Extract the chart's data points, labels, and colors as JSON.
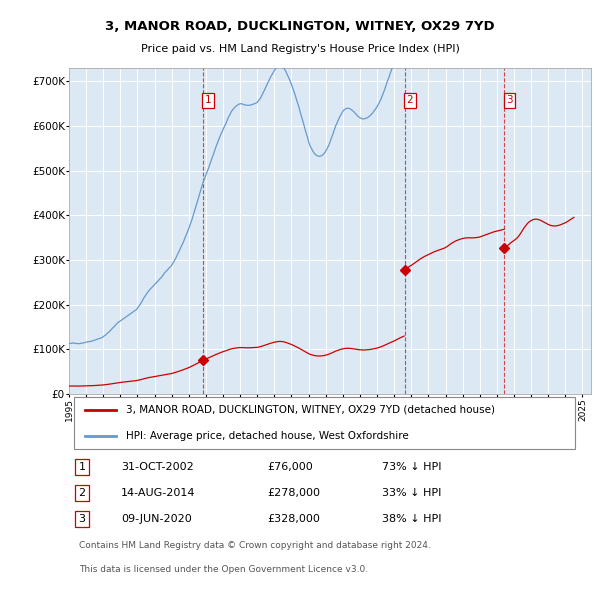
{
  "title": "3, MANOR ROAD, DUCKLINGTON, WITNEY, OX29 7YD",
  "subtitle": "Price paid vs. HM Land Registry's House Price Index (HPI)",
  "ylim": [
    0,
    730000
  ],
  "yticks": [
    0,
    100000,
    200000,
    300000,
    400000,
    500000,
    600000,
    700000
  ],
  "ytick_labels": [
    "£0",
    "£100K",
    "£200K",
    "£300K",
    "£400K",
    "£500K",
    "£600K",
    "£700K"
  ],
  "xlim_start": 1995.0,
  "xlim_end": 2025.5,
  "plot_bg_color": "#dce9f5",
  "fig_bg_color": "#ffffff",
  "red_line_color": "#cc0000",
  "blue_line_color": "#6699cc",
  "transactions": [
    {
      "num": 1,
      "year": 2002.83,
      "price": 76000,
      "label": "1"
    },
    {
      "num": 2,
      "year": 2014.62,
      "price": 278000,
      "label": "2"
    },
    {
      "num": 3,
      "year": 2020.44,
      "price": 328000,
      "label": "3"
    }
  ],
  "legend_label_red": "3, MANOR ROAD, DUCKLINGTON, WITNEY, OX29 7YD (detached house)",
  "legend_label_blue": "HPI: Average price, detached house, West Oxfordshire",
  "table_rows": [
    {
      "num": "1",
      "date": "31-OCT-2002",
      "price": "£76,000",
      "hpi": "73% ↓ HPI"
    },
    {
      "num": "2",
      "date": "14-AUG-2014",
      "price": "£278,000",
      "hpi": "33% ↓ HPI"
    },
    {
      "num": "3",
      "date": "09-JUN-2020",
      "price": "£328,000",
      "hpi": "38% ↓ HPI"
    }
  ],
  "footnote1": "Contains HM Land Registry data © Crown copyright and database right 2024.",
  "footnote2": "This data is licensed under the Open Government Licence v3.0.",
  "hpi_years": [
    1995.0,
    1995.08,
    1995.17,
    1995.25,
    1995.33,
    1995.42,
    1995.5,
    1995.58,
    1995.67,
    1995.75,
    1995.83,
    1995.92,
    1996.0,
    1996.08,
    1996.17,
    1996.25,
    1996.33,
    1996.42,
    1996.5,
    1996.58,
    1996.67,
    1996.75,
    1996.83,
    1996.92,
    1997.0,
    1997.08,
    1997.17,
    1997.25,
    1997.33,
    1997.42,
    1997.5,
    1997.58,
    1997.67,
    1997.75,
    1997.83,
    1997.92,
    1998.0,
    1998.08,
    1998.17,
    1998.25,
    1998.33,
    1998.42,
    1998.5,
    1998.58,
    1998.67,
    1998.75,
    1998.83,
    1998.92,
    1999.0,
    1999.08,
    1999.17,
    1999.25,
    1999.33,
    1999.42,
    1999.5,
    1999.58,
    1999.67,
    1999.75,
    1999.83,
    1999.92,
    2000.0,
    2000.08,
    2000.17,
    2000.25,
    2000.33,
    2000.42,
    2000.5,
    2000.58,
    2000.67,
    2000.75,
    2000.83,
    2000.92,
    2001.0,
    2001.08,
    2001.17,
    2001.25,
    2001.33,
    2001.42,
    2001.5,
    2001.58,
    2001.67,
    2001.75,
    2001.83,
    2001.92,
    2002.0,
    2002.08,
    2002.17,
    2002.25,
    2002.33,
    2002.42,
    2002.5,
    2002.58,
    2002.67,
    2002.75,
    2002.83,
    2002.92,
    2003.0,
    2003.08,
    2003.17,
    2003.25,
    2003.33,
    2003.42,
    2003.5,
    2003.58,
    2003.67,
    2003.75,
    2003.83,
    2003.92,
    2004.0,
    2004.08,
    2004.17,
    2004.25,
    2004.33,
    2004.42,
    2004.5,
    2004.58,
    2004.67,
    2004.75,
    2004.83,
    2004.92,
    2005.0,
    2005.08,
    2005.17,
    2005.25,
    2005.33,
    2005.42,
    2005.5,
    2005.58,
    2005.67,
    2005.75,
    2005.83,
    2005.92,
    2006.0,
    2006.08,
    2006.17,
    2006.25,
    2006.33,
    2006.42,
    2006.5,
    2006.58,
    2006.67,
    2006.75,
    2006.83,
    2006.92,
    2007.0,
    2007.08,
    2007.17,
    2007.25,
    2007.33,
    2007.42,
    2007.5,
    2007.58,
    2007.67,
    2007.75,
    2007.83,
    2007.92,
    2008.0,
    2008.08,
    2008.17,
    2008.25,
    2008.33,
    2008.42,
    2008.5,
    2008.58,
    2008.67,
    2008.75,
    2008.83,
    2008.92,
    2009.0,
    2009.08,
    2009.17,
    2009.25,
    2009.33,
    2009.42,
    2009.5,
    2009.58,
    2009.67,
    2009.75,
    2009.83,
    2009.92,
    2010.0,
    2010.08,
    2010.17,
    2010.25,
    2010.33,
    2010.42,
    2010.5,
    2010.58,
    2010.67,
    2010.75,
    2010.83,
    2010.92,
    2011.0,
    2011.08,
    2011.17,
    2011.25,
    2011.33,
    2011.42,
    2011.5,
    2011.58,
    2011.67,
    2011.75,
    2011.83,
    2011.92,
    2012.0,
    2012.08,
    2012.17,
    2012.25,
    2012.33,
    2012.42,
    2012.5,
    2012.58,
    2012.67,
    2012.75,
    2012.83,
    2012.92,
    2013.0,
    2013.08,
    2013.17,
    2013.25,
    2013.33,
    2013.42,
    2013.5,
    2013.58,
    2013.67,
    2013.75,
    2013.83,
    2013.92,
    2014.0,
    2014.08,
    2014.17,
    2014.25,
    2014.33,
    2014.42,
    2014.5,
    2014.58,
    2014.67,
    2014.75,
    2014.83,
    2014.92,
    2015.0,
    2015.08,
    2015.17,
    2015.25,
    2015.33,
    2015.42,
    2015.5,
    2015.58,
    2015.67,
    2015.75,
    2015.83,
    2015.92,
    2016.0,
    2016.08,
    2016.17,
    2016.25,
    2016.33,
    2016.42,
    2016.5,
    2016.58,
    2016.67,
    2016.75,
    2016.83,
    2016.92,
    2017.0,
    2017.08,
    2017.17,
    2017.25,
    2017.33,
    2017.42,
    2017.5,
    2017.58,
    2017.67,
    2017.75,
    2017.83,
    2017.92,
    2018.0,
    2018.08,
    2018.17,
    2018.25,
    2018.33,
    2018.42,
    2018.5,
    2018.58,
    2018.67,
    2018.75,
    2018.83,
    2018.92,
    2019.0,
    2019.08,
    2019.17,
    2019.25,
    2019.33,
    2019.42,
    2019.5,
    2019.58,
    2019.67,
    2019.75,
    2019.83,
    2019.92,
    2020.0,
    2020.08,
    2020.17,
    2020.25,
    2020.33,
    2020.42,
    2020.5,
    2020.58,
    2020.67,
    2020.75,
    2020.83,
    2020.92,
    2021.0,
    2021.08,
    2021.17,
    2021.25,
    2021.33,
    2021.42,
    2021.5,
    2021.58,
    2021.67,
    2021.75,
    2021.83,
    2021.92,
    2022.0,
    2022.08,
    2022.17,
    2022.25,
    2022.33,
    2022.42,
    2022.5,
    2022.58,
    2022.67,
    2022.75,
    2022.83,
    2022.92,
    2023.0,
    2023.08,
    2023.17,
    2023.25,
    2023.33,
    2023.42,
    2023.5,
    2023.58,
    2023.67,
    2023.75,
    2023.83,
    2023.92,
    2024.0,
    2024.08,
    2024.17,
    2024.25,
    2024.33,
    2024.42,
    2024.5
  ],
  "hpi_index": [
    100,
    100.5,
    101,
    101.5,
    101,
    100.5,
    100,
    100,
    100.5,
    101,
    101.5,
    102,
    103,
    103.5,
    104,
    104.5,
    105,
    106,
    107,
    108,
    109,
    110,
    111,
    112,
    114,
    116,
    118,
    121,
    123,
    126,
    129,
    132,
    135,
    138,
    141,
    143,
    145,
    147,
    149,
    151,
    153,
    155,
    157,
    159,
    161,
    163,
    165,
    167,
    170,
    174,
    178,
    183,
    188,
    193,
    197,
    201,
    205,
    208,
    211,
    214,
    217,
    220,
    223,
    226,
    229,
    232,
    236,
    240,
    243,
    246,
    249,
    252,
    255,
    260,
    265,
    270,
    276,
    282,
    288,
    294,
    300,
    307,
    314,
    321,
    328,
    336,
    344,
    353,
    362,
    372,
    381,
    390,
    400,
    410,
    419,
    427,
    434,
    441,
    449,
    457,
    465,
    473,
    481,
    489,
    497,
    504,
    511,
    518,
    524,
    530,
    536,
    543,
    549,
    555,
    560,
    564,
    567,
    570,
    572,
    574,
    575,
    575,
    574,
    573,
    572,
    572,
    572,
    572,
    573,
    574,
    575,
    576,
    578,
    581,
    585,
    590,
    596,
    602,
    608,
    614,
    620,
    626,
    631,
    636,
    641,
    645,
    648,
    650,
    651,
    650,
    648,
    644,
    639,
    633,
    627,
    620,
    613,
    605,
    597,
    588,
    579,
    570,
    560,
    550,
    540,
    530,
    520,
    510,
    500,
    492,
    486,
    481,
    477,
    474,
    472,
    471,
    471,
    472,
    474,
    477,
    481,
    486,
    492,
    499,
    507,
    515,
    523,
    531,
    538,
    544,
    550,
    555,
    560,
    563,
    565,
    566,
    566,
    565,
    563,
    561,
    558,
    555,
    552,
    549,
    547,
    546,
    545,
    545,
    546,
    547,
    549,
    551,
    554,
    557,
    561,
    565,
    569,
    574,
    580,
    586,
    593,
    601,
    609,
    617,
    625,
    633,
    641,
    649,
    657,
    666,
    675,
    684,
    693,
    701,
    709,
    717,
    724,
    730,
    736,
    742,
    747,
    752,
    758,
    764,
    770,
    776,
    782,
    787,
    792,
    797,
    801,
    805,
    809,
    813,
    817,
    821,
    825,
    828,
    831,
    834,
    837,
    840,
    843,
    846,
    850,
    855,
    861,
    867,
    873,
    878,
    883,
    887,
    891,
    894,
    897,
    900,
    902,
    904,
    905,
    906,
    906,
    906,
    906,
    906,
    906,
    907,
    908,
    909,
    911,
    914,
    917,
    920,
    923,
    926,
    929,
    932,
    935,
    938,
    941,
    943,
    945,
    947,
    949,
    951,
    953,
    956,
    960,
    966,
    974,
    982,
    990,
    997,
    1003,
    1010,
    1018,
    1028,
    1040,
    1055,
    1070,
    1084,
    1097,
    1109,
    1119,
    1127,
    1133,
    1138,
    1141,
    1142,
    1142,
    1140,
    1137,
    1133,
    1128,
    1123,
    1118,
    1113,
    1108,
    1104,
    1101,
    1099,
    1098,
    1098,
    1099,
    1101,
    1104,
    1107,
    1111,
    1115,
    1119,
    1124,
    1130,
    1136,
    1142,
    1148,
    1154
  ]
}
